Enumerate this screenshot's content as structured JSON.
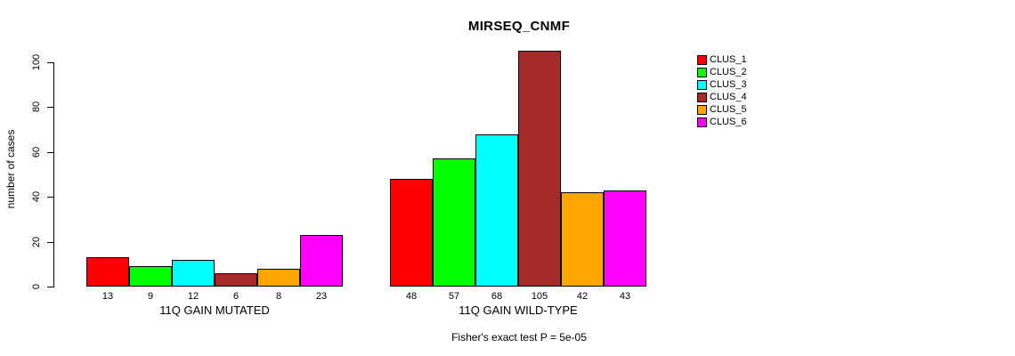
{
  "chart_data": {
    "type": "bar",
    "title": "MIRSEQ_CNMF",
    "xlabel": "",
    "ylabel": "number of cases",
    "ylim": [
      0,
      100
    ],
    "yticks": [
      0,
      20,
      40,
      60,
      80,
      100
    ],
    "grid": false,
    "legend_position": "right",
    "categories": [
      "CLUS_1",
      "CLUS_2",
      "CLUS_3",
      "CLUS_4",
      "CLUS_5",
      "CLUS_6"
    ],
    "series_colors": [
      "#FF0000",
      "#00FF00",
      "#00FFFF",
      "#A52A2A",
      "#FFA500",
      "#FF00FF"
    ],
    "groups": [
      {
        "label": "11Q GAIN MUTATED",
        "values": [
          13,
          9,
          12,
          6,
          8,
          23
        ]
      },
      {
        "label": "11Q GAIN WILD-TYPE",
        "values": [
          48,
          57,
          68,
          105,
          42,
          43
        ]
      }
    ],
    "bar_value_labels_shown": true,
    "annotation": "Fisher's exact test P = 5e-05"
  }
}
